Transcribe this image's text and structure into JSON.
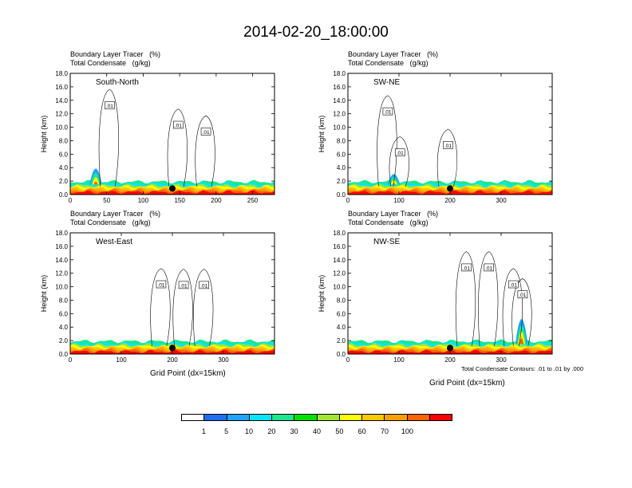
{
  "title": "2014-02-20_18:00:00",
  "panel_header": {
    "line1_name": "Boundary Layer Tracer",
    "line1_unit": "(%)",
    "line2_name": "Total Condensate",
    "line2_unit": "(g/kg)"
  },
  "xlabel": "Grid Point (dx=15km)",
  "contour_note": "Total Condensate Contours: .01 to .01 by .000",
  "colorbar": {
    "colors": [
      "#ffffff",
      "#1e6eef",
      "#1ea5ff",
      "#00e6ff",
      "#1ee68c",
      "#00e100",
      "#a0e632",
      "#ffff00",
      "#ffc800",
      "#ffa000",
      "#ff6400",
      "#ff0000"
    ],
    "labels": [
      "1",
      "5",
      "10",
      "20",
      "30",
      "40",
      "50",
      "60",
      "70",
      "100"
    ]
  },
  "chart_data": [
    {
      "type": "cross-section",
      "cross_section": "South-North",
      "ylabel": "Height (km)",
      "ylim": [
        0,
        18
      ],
      "yticks": [
        "0.0",
        "2.0",
        "4.0",
        "6.0",
        "8.0",
        "10.0",
        "12.0",
        "14.0",
        "16.0",
        "18.0"
      ],
      "xlim": [
        0,
        280
      ],
      "xticks": [
        0,
        50,
        100,
        150,
        200,
        250
      ],
      "marker_x": 140,
      "plume": {
        "x": 35,
        "top_km": 5.8
      },
      "contour_labels": [
        {
          "text": ".01",
          "x": 54,
          "y": 13.2
        },
        {
          "text": ".01",
          "x": 148,
          "y": 10.3
        },
        {
          "text": ".01",
          "x": 186,
          "y": 9.3
        }
      ]
    },
    {
      "type": "cross-section",
      "cross_section": "SW-NE",
      "ylabel": "Height (km)",
      "ylim": [
        0,
        18
      ],
      "yticks": [
        "0.0",
        "2.0",
        "4.0",
        "6.0",
        "8.0",
        "10.0",
        "12.0",
        "14.0",
        "16.0",
        "18.0"
      ],
      "xlim": [
        0,
        400
      ],
      "xticks": [
        0,
        100,
        200,
        300
      ],
      "marker_x": 200,
      "plume": {
        "x": 90,
        "top_km": 4.2
      },
      "contour_labels": [
        {
          "text": ".01",
          "x": 78,
          "y": 12.3
        },
        {
          "text": ".01",
          "x": 102,
          "y": 6.2
        },
        {
          "text": ".01",
          "x": 196,
          "y": 7.3
        }
      ]
    },
    {
      "type": "cross-section",
      "cross_section": "West-East",
      "ylabel": "Height (km)",
      "ylim": [
        0,
        18
      ],
      "yticks": [
        "0.0",
        "2.0",
        "4.0",
        "6.0",
        "8.0",
        "10.0",
        "12.0",
        "14.0",
        "16.0",
        "18.0"
      ],
      "xlim": [
        0,
        400
      ],
      "xticks": [
        0,
        100,
        200,
        300
      ],
      "marker_x": 200,
      "plume": null,
      "contour_labels": [
        {
          "text": ".01",
          "x": 178,
          "y": 10.3
        },
        {
          "text": ".01",
          "x": 222,
          "y": 10.2
        },
        {
          "text": ".01",
          "x": 262,
          "y": 10.2
        }
      ]
    },
    {
      "type": "cross-section",
      "cross_section": "NW-SE",
      "ylabel": "Height (km)",
      "ylim": [
        0,
        18
      ],
      "yticks": [
        "0.0",
        "2.0",
        "4.0",
        "6.0",
        "8.0",
        "10.0",
        "12.0",
        "14.0",
        "16.0",
        "18.0"
      ],
      "xlim": [
        0,
        400
      ],
      "xticks": [
        0,
        100,
        200,
        300
      ],
      "marker_x": 200,
      "plume": {
        "x": 340,
        "top_km": 8.5
      },
      "contour_labels": [
        {
          "text": ".01",
          "x": 232,
          "y": 12.8
        },
        {
          "text": ".01",
          "x": 276,
          "y": 12.8
        },
        {
          "text": ".01",
          "x": 324,
          "y": 10.3
        },
        {
          "text": ".01",
          "x": 342,
          "y": 8.8
        }
      ]
    }
  ]
}
